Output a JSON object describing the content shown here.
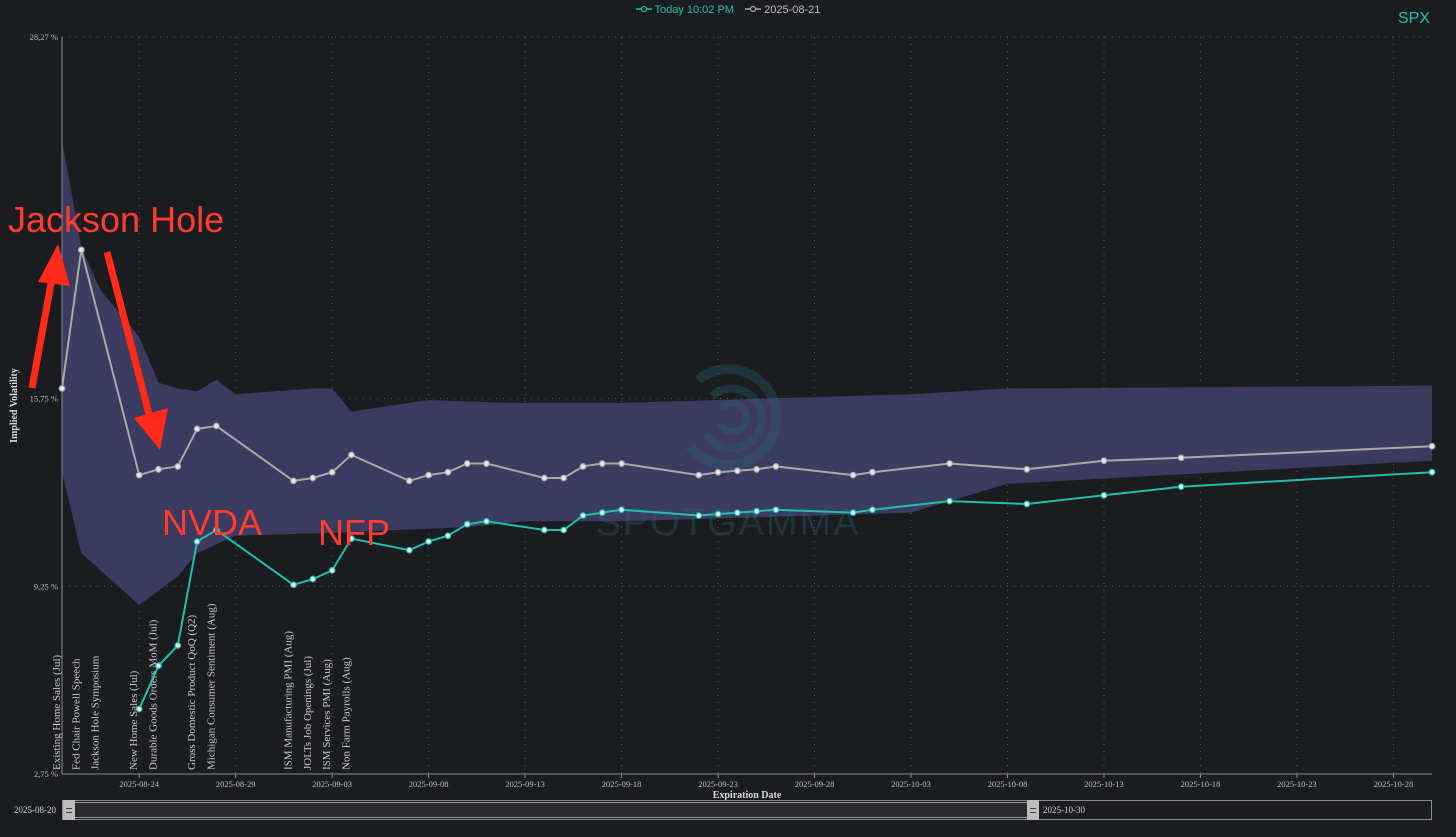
{
  "legend": {
    "today_label": "Today 10:02 PM",
    "prior_label": "2025-08-21",
    "today_color": "#1fbfae",
    "prior_color": "#a8a8a8"
  },
  "ticker": "SPX",
  "watermark": "SPOTGAMMA",
  "range_selector": {
    "start_label": "2025-08-20",
    "end_label": "2025-10-30"
  },
  "annotations": [
    {
      "text": "Jackson Hole",
      "color": "#ff3b2f"
    },
    {
      "text": "NVDA",
      "color": "#ff3b2f"
    },
    {
      "text": "NFP",
      "color": "#ff3b2f"
    }
  ],
  "chart_data": {
    "type": "line",
    "xlabel": "Expiration Date",
    "ylabel": "Implied Volatility",
    "y_ticks": [
      "2,75 %",
      "9,25 %",
      "15,75 %",
      "28,27 %"
    ],
    "y_tick_values": [
      2.75,
      9.25,
      15.75,
      28.27
    ],
    "ylim": [
      2.75,
      28.27
    ],
    "x_ticks": [
      "2025-08-24",
      "2025-08-29",
      "2025-09-03",
      "2025-09-08",
      "2025-09-13",
      "2025-09-18",
      "2025-09-23",
      "2025-09-28",
      "2025-10-03",
      "2025-10-08",
      "2025-10-13",
      "2025-10-18",
      "2025-10-23",
      "2025-10-28"
    ],
    "xlim": [
      "2025-08-20",
      "2025-10-30"
    ],
    "grid": true,
    "legend_position": "top-center",
    "band": {
      "color": "#3d3c63",
      "upper": [
        [
          "2025-08-20",
          24.7
        ],
        [
          "2025-08-21",
          21.0
        ],
        [
          "2025-08-22",
          19.5
        ],
        [
          "2025-08-24",
          17.9
        ],
        [
          "2025-08-25",
          16.3
        ],
        [
          "2025-08-26",
          16.1
        ],
        [
          "2025-08-27",
          16.0
        ],
        [
          "2025-08-28",
          16.4
        ],
        [
          "2025-08-29",
          15.9
        ],
        [
          "2025-09-02",
          16.1
        ],
        [
          "2025-09-03",
          16.1
        ],
        [
          "2025-09-04",
          15.3
        ],
        [
          "2025-09-08",
          15.7
        ],
        [
          "2025-09-12",
          15.6
        ],
        [
          "2025-09-18",
          15.6
        ],
        [
          "2025-10-03",
          15.9
        ],
        [
          "2025-10-08",
          16.1
        ],
        [
          "2025-10-30",
          16.2
        ]
      ],
      "lower": [
        [
          "2025-08-20",
          13.2
        ],
        [
          "2025-08-21",
          10.4
        ],
        [
          "2025-08-24",
          8.6
        ],
        [
          "2025-08-26",
          9.6
        ],
        [
          "2025-08-27",
          10.4
        ],
        [
          "2025-08-29",
          11.0
        ],
        [
          "2025-09-03",
          11.1
        ],
        [
          "2025-09-10",
          11.3
        ],
        [
          "2025-09-13",
          11.5
        ],
        [
          "2025-09-18",
          11.5
        ],
        [
          "2025-10-03",
          11.8
        ],
        [
          "2025-10-08",
          12.8
        ],
        [
          "2025-10-30",
          13.6
        ]
      ]
    },
    "series": [
      {
        "name": "Today 10:02 PM",
        "color": "#1fbfae",
        "points": [
          [
            "2025-08-24",
            5.0
          ],
          [
            "2025-08-25",
            6.5
          ],
          [
            "2025-08-26",
            7.2
          ],
          [
            "2025-08-27",
            10.8
          ],
          [
            "2025-08-28",
            11.2
          ],
          [
            "2025-09-01",
            9.3
          ],
          [
            "2025-09-02",
            9.5
          ],
          [
            "2025-09-03",
            9.8
          ],
          [
            "2025-09-04",
            10.9
          ],
          [
            "2025-09-07",
            10.5
          ],
          [
            "2025-09-08",
            10.8
          ],
          [
            "2025-09-09",
            11.0
          ],
          [
            "2025-09-10",
            11.4
          ],
          [
            "2025-09-11",
            11.5
          ],
          [
            "2025-09-14",
            11.2
          ],
          [
            "2025-09-15",
            11.2
          ],
          [
            "2025-09-16",
            11.7
          ],
          [
            "2025-09-17",
            11.8
          ],
          [
            "2025-09-18",
            11.9
          ],
          [
            "2025-09-22",
            11.7
          ],
          [
            "2025-09-23",
            11.75
          ],
          [
            "2025-09-24",
            11.8
          ],
          [
            "2025-09-25",
            11.85
          ],
          [
            "2025-09-26",
            11.9
          ],
          [
            "2025-09-30",
            11.8
          ],
          [
            "2025-10-01",
            11.9
          ],
          [
            "2025-10-05",
            12.2
          ],
          [
            "2025-10-09",
            12.1
          ],
          [
            "2025-10-13",
            12.4
          ],
          [
            "2025-10-17",
            12.7
          ],
          [
            "2025-10-30",
            13.2
          ]
        ]
      },
      {
        "name": "2025-08-21",
        "color": "#a8a8a8",
        "points": [
          [
            "2025-08-20",
            16.1
          ],
          [
            "2025-08-21",
            20.9
          ],
          [
            "2025-08-24",
            13.1
          ],
          [
            "2025-08-25",
            13.3
          ],
          [
            "2025-08-26",
            13.4
          ],
          [
            "2025-08-27",
            14.7
          ],
          [
            "2025-08-28",
            14.8
          ],
          [
            "2025-09-01",
            12.9
          ],
          [
            "2025-09-02",
            13.0
          ],
          [
            "2025-09-03",
            13.2
          ],
          [
            "2025-09-04",
            13.8
          ],
          [
            "2025-09-07",
            12.9
          ],
          [
            "2025-09-08",
            13.1
          ],
          [
            "2025-09-09",
            13.2
          ],
          [
            "2025-09-10",
            13.5
          ],
          [
            "2025-09-11",
            13.5
          ],
          [
            "2025-09-14",
            13.0
          ],
          [
            "2025-09-15",
            13.0
          ],
          [
            "2025-09-16",
            13.4
          ],
          [
            "2025-09-17",
            13.5
          ],
          [
            "2025-09-18",
            13.5
          ],
          [
            "2025-09-22",
            13.1
          ],
          [
            "2025-09-23",
            13.2
          ],
          [
            "2025-09-24",
            13.25
          ],
          [
            "2025-09-25",
            13.3
          ],
          [
            "2025-09-26",
            13.4
          ],
          [
            "2025-09-30",
            13.1
          ],
          [
            "2025-10-01",
            13.2
          ],
          [
            "2025-10-05",
            13.5
          ],
          [
            "2025-10-09",
            13.3
          ],
          [
            "2025-10-13",
            13.6
          ],
          [
            "2025-10-17",
            13.7
          ],
          [
            "2025-10-30",
            14.1
          ]
        ]
      }
    ],
    "events": [
      {
        "date": "2025-08-20",
        "label": "Existing Home Sales (Jul)"
      },
      {
        "date": "2025-08-21",
        "label": "Fed Chair Powell Speech"
      },
      {
        "date": "2025-08-22",
        "label": "Jackson Hole Symposium"
      },
      {
        "date": "2025-08-24",
        "label": "New Home Sales (Jul)"
      },
      {
        "date": "2025-08-25",
        "label": "Durable Goods Orders MoM (Jul)"
      },
      {
        "date": "2025-08-27",
        "label": "Gross Domestic Product QoQ (Q2)"
      },
      {
        "date": "2025-08-28",
        "label": "Michigan Consumer Sentiment (Aug)"
      },
      {
        "date": "2025-09-01",
        "label": "ISM Manufacturing PMI (Aug)"
      },
      {
        "date": "2025-09-02",
        "label": "JOLTs Job Openings (Jul)"
      },
      {
        "date": "2025-09-03",
        "label": "ISM Services PMI (Aug)"
      },
      {
        "date": "2025-09-04",
        "label": "Non Farm Payrolls (Aug)"
      }
    ]
  }
}
